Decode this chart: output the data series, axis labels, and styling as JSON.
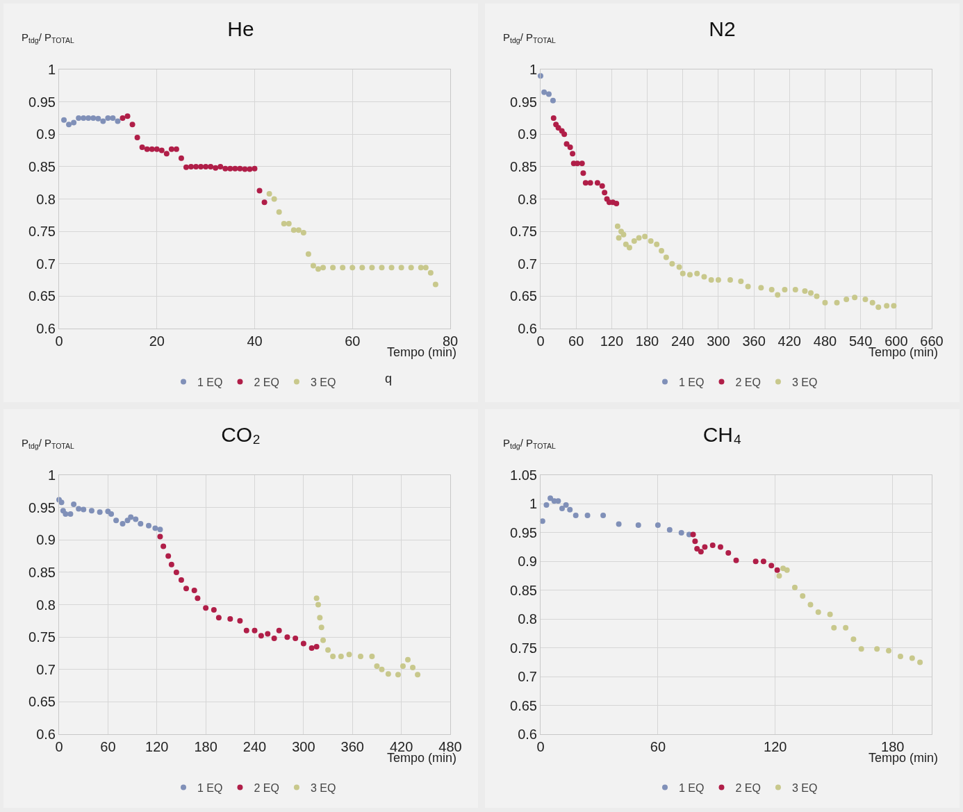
{
  "chart_data": [
    {
      "type": "scatter",
      "title": "He",
      "ylabel": "P$_{tdg}$/ P$_{TOTAL}$",
      "xlabel": "Tempo (min)",
      "marker": "circle",
      "grid": true,
      "legend": "bottom",
      "annotations": [
        "q"
      ],
      "xlim": [
        0,
        80
      ],
      "xticks": [
        0,
        20,
        40,
        60,
        80
      ],
      "ylim": [
        0.6,
        1
      ],
      "yticks": [
        0.6,
        0.65,
        0.7,
        0.75,
        0.8,
        0.85,
        0.9,
        0.95,
        1
      ],
      "series": [
        {
          "name": "1 EQ",
          "color": "#8090b8",
          "x": [
            1,
            2,
            3,
            4,
            5,
            6,
            7,
            8,
            9,
            10,
            11,
            12
          ],
          "values": [
            0.922,
            0.915,
            0.918,
            0.925,
            0.925,
            0.925,
            0.925,
            0.924,
            0.92,
            0.925,
            0.925,
            0.92
          ]
        },
        {
          "name": "2 EQ",
          "color": "#b01e48",
          "x": [
            13,
            14,
            15,
            16,
            17,
            18,
            19,
            20,
            21,
            22,
            23,
            24,
            25,
            26,
            27,
            28,
            29,
            30,
            31,
            32,
            33,
            34,
            35,
            36,
            37,
            38,
            39,
            40,
            41,
            42
          ],
          "values": [
            0.925,
            0.928,
            0.915,
            0.895,
            0.88,
            0.877,
            0.877,
            0.877,
            0.875,
            0.87,
            0.877,
            0.877,
            0.863,
            0.849,
            0.85,
            0.85,
            0.85,
            0.85,
            0.85,
            0.848,
            0.85,
            0.847,
            0.847,
            0.847,
            0.847,
            0.846,
            0.846,
            0.847,
            0.813,
            0.795
          ]
        },
        {
          "name": "3 EQ",
          "color": "#c8c88c",
          "x": [
            43,
            44,
            45,
            46,
            47,
            48,
            49,
            50,
            51,
            52,
            53,
            54,
            56,
            58,
            60,
            62,
            64,
            66,
            68,
            70,
            72,
            74,
            75,
            76,
            77
          ],
          "values": [
            0.808,
            0.8,
            0.78,
            0.762,
            0.762,
            0.752,
            0.752,
            0.748,
            0.715,
            0.697,
            0.692,
            0.694,
            0.694,
            0.694,
            0.694,
            0.694,
            0.694,
            0.694,
            0.694,
            0.694,
            0.694,
            0.694,
            0.694,
            0.686,
            0.668
          ]
        }
      ]
    },
    {
      "type": "scatter",
      "title": "N2",
      "ylabel": "P$_{tdg}$/ P$_{TOTAL}$",
      "xlabel": "Tempo (min)",
      "marker": "circle",
      "grid": true,
      "legend": "bottom",
      "xlim": [
        0,
        660
      ],
      "xticks": [
        0,
        60,
        120,
        180,
        240,
        300,
        360,
        420,
        480,
        540,
        600,
        660
      ],
      "ylim": [
        0.6,
        1
      ],
      "yticks": [
        0.6,
        0.65,
        0.7,
        0.75,
        0.8,
        0.85,
        0.9,
        0.95,
        1
      ],
      "series": [
        {
          "name": "1 EQ",
          "color": "#8090b8",
          "x": [
            0,
            6,
            14,
            21
          ],
          "values": [
            0.99,
            0.965,
            0.962,
            0.952
          ]
        },
        {
          "name": "2 EQ",
          "color": "#b01e48",
          "x": [
            22,
            26,
            30,
            36,
            40,
            44,
            50,
            54,
            56,
            62,
            70,
            72,
            76,
            84,
            96,
            104,
            108,
            112,
            116,
            122,
            128
          ],
          "values": [
            0.925,
            0.915,
            0.91,
            0.905,
            0.9,
            0.885,
            0.88,
            0.87,
            0.855,
            0.855,
            0.855,
            0.84,
            0.825,
            0.825,
            0.825,
            0.82,
            0.81,
            0.8,
            0.795,
            0.795,
            0.793
          ]
        },
        {
          "name": "3 EQ",
          "color": "#c8c88c",
          "x": [
            130,
            132,
            136,
            140,
            144,
            150,
            158,
            166,
            176,
            186,
            196,
            204,
            212,
            222,
            234,
            240,
            252,
            264,
            276,
            288,
            300,
            320,
            338,
            350,
            372,
            390,
            400,
            412,
            430,
            446,
            456,
            466,
            480,
            500,
            516,
            530,
            548,
            560,
            570,
            584,
            596
          ],
          "values": [
            0.758,
            0.74,
            0.75,
            0.745,
            0.73,
            0.725,
            0.735,
            0.74,
            0.742,
            0.735,
            0.73,
            0.72,
            0.71,
            0.7,
            0.695,
            0.685,
            0.683,
            0.685,
            0.68,
            0.675,
            0.675,
            0.675,
            0.673,
            0.665,
            0.663,
            0.66,
            0.652,
            0.66,
            0.66,
            0.658,
            0.655,
            0.65,
            0.64,
            0.64,
            0.645,
            0.648,
            0.645,
            0.64,
            0.633,
            0.635,
            0.635
          ]
        }
      ]
    },
    {
      "type": "scatter",
      "title": "CO₂",
      "ylabel": "P$_{tdg}$/ P$_{TOTAL}$",
      "xlabel": "Tempo (min)",
      "marker": "circle",
      "grid": true,
      "legend": "bottom",
      "xlim": [
        0,
        480
      ],
      "xticks": [
        0,
        60,
        120,
        180,
        240,
        300,
        360,
        420,
        480
      ],
      "ylim": [
        0.6,
        1
      ],
      "yticks": [
        0.6,
        0.65,
        0.7,
        0.75,
        0.8,
        0.85,
        0.9,
        0.95,
        1
      ],
      "series": [
        {
          "name": "1 EQ",
          "color": "#8090b8",
          "x": [
            0,
            3,
            5,
            8,
            14,
            18,
            24,
            30,
            40,
            50,
            60,
            64,
            70,
            78,
            84,
            88,
            94,
            100,
            110,
            118,
            124
          ],
          "values": [
            0.962,
            0.958,
            0.945,
            0.94,
            0.94,
            0.955,
            0.948,
            0.947,
            0.945,
            0.943,
            0.944,
            0.94,
            0.93,
            0.925,
            0.93,
            0.935,
            0.932,
            0.925,
            0.922,
            0.918,
            0.916
          ]
        },
        {
          "name": "2 EQ",
          "color": "#b01e48",
          "x": [
            124,
            128,
            134,
            138,
            144,
            150,
            156,
            166,
            170,
            180,
            190,
            196,
            210,
            222,
            230,
            240,
            248,
            256,
            264,
            270,
            280,
            290,
            300,
            310,
            316
          ],
          "values": [
            0.905,
            0.89,
            0.875,
            0.862,
            0.85,
            0.838,
            0.825,
            0.822,
            0.81,
            0.795,
            0.792,
            0.78,
            0.778,
            0.775,
            0.76,
            0.76,
            0.752,
            0.755,
            0.748,
            0.76,
            0.75,
            0.748,
            0.74,
            0.733,
            0.735
          ]
        },
        {
          "name": "3 EQ",
          "color": "#c8c88c",
          "x": [
            316,
            318,
            320,
            322,
            324,
            330,
            336,
            346,
            356,
            370,
            384,
            390,
            396,
            404,
            416,
            422,
            428,
            434,
            440
          ],
          "values": [
            0.81,
            0.8,
            0.78,
            0.765,
            0.745,
            0.73,
            0.72,
            0.72,
            0.723,
            0.72,
            0.72,
            0.705,
            0.7,
            0.693,
            0.692,
            0.705,
            0.715,
            0.703,
            0.692
          ]
        }
      ]
    },
    {
      "type": "scatter",
      "title": "CH₄",
      "ylabel": "P$_{tdg}$/ P$_{TOTAL}$",
      "xlabel": "Tempo (min)",
      "marker": "circle",
      "grid": true,
      "legend": "bottom",
      "xlim": [
        0,
        200
      ],
      "xticks": [
        0,
        60,
        120,
        180
      ],
      "ylim": [
        0.6,
        1.05
      ],
      "yticks": [
        0.6,
        0.65,
        0.7,
        0.75,
        0.8,
        0.85,
        0.9,
        0.95,
        1,
        1.05
      ],
      "series": [
        {
          "name": "1 EQ",
          "color": "#8090b8",
          "x": [
            1,
            3,
            5,
            7,
            9,
            11,
            13,
            15,
            18,
            24,
            32,
            40,
            50,
            60,
            66,
            72,
            76
          ],
          "values": [
            0.97,
            0.998,
            1.01,
            1.005,
            1.005,
            0.992,
            0.998,
            0.99,
            0.98,
            0.98,
            0.98,
            0.965,
            0.963,
            0.963,
            0.955,
            0.95,
            0.947
          ]
        },
        {
          "name": "2 EQ",
          "color": "#b01e48",
          "x": [
            78,
            79,
            80,
            82,
            84,
            88,
            92,
            96,
            100,
            110,
            114,
            118,
            121
          ],
          "values": [
            0.947,
            0.935,
            0.922,
            0.917,
            0.925,
            0.928,
            0.925,
            0.915,
            0.902,
            0.9,
            0.9,
            0.893,
            0.885
          ]
        },
        {
          "name": "3 EQ",
          "color": "#c8c88c",
          "x": [
            122,
            124,
            126,
            130,
            134,
            138,
            142,
            148,
            150,
            156,
            160,
            164,
            172,
            178,
            184,
            190,
            194
          ],
          "values": [
            0.875,
            0.888,
            0.885,
            0.855,
            0.84,
            0.825,
            0.812,
            0.808,
            0.785,
            0.785,
            0.765,
            0.748,
            0.748,
            0.745,
            0.735,
            0.732,
            0.725
          ]
        }
      ]
    }
  ]
}
